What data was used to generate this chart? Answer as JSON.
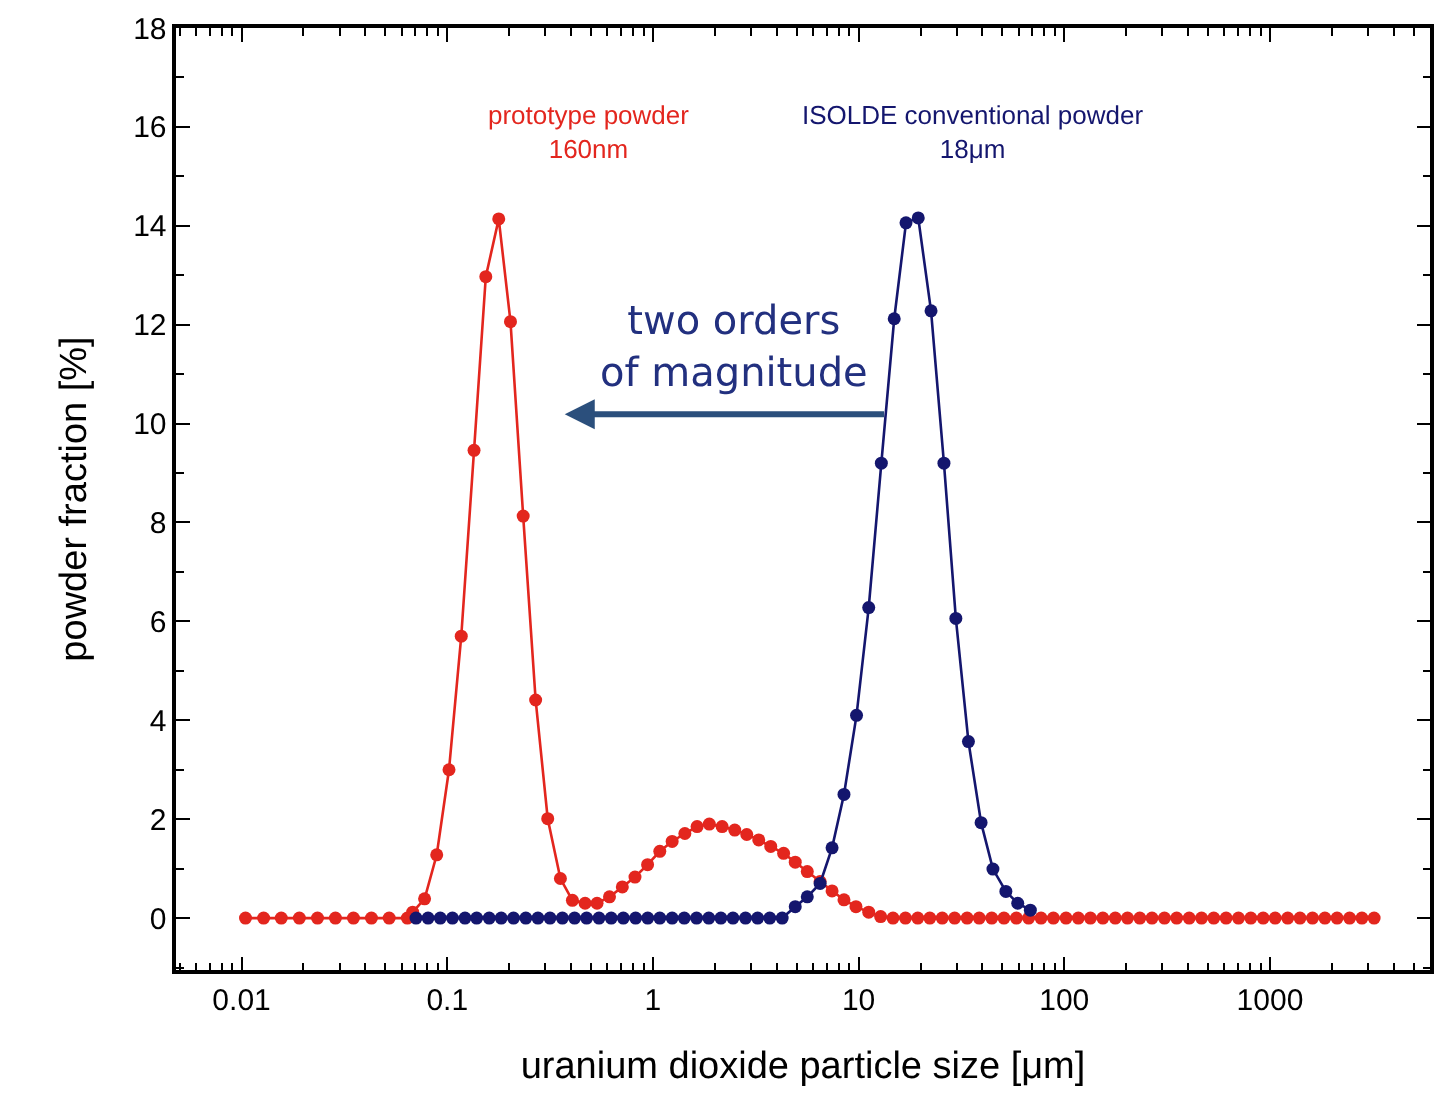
{
  "chart_data": {
    "type": "line",
    "xlabel": "uranium dioxide particle size [μm]",
    "ylabel": "powder fraction [%]",
    "log": "x",
    "xlim": [
      0.0048,
      6000
    ],
    "xticks": [
      {
        "value": 0.01,
        "label": "0.01"
      },
      {
        "value": 0.1,
        "label": "0.1"
      },
      1,
      10,
      100,
      1000
    ],
    "ylim": [
      -1.05,
      18
    ],
    "yticks": [
      0,
      2,
      4,
      6,
      8,
      10,
      12,
      14,
      16,
      18
    ],
    "grid": false,
    "marker": "circle",
    "line_style": "solid",
    "annotations": [
      "prototype powder\n160nm",
      "ISOLDE conventional powder\n18μm",
      "two orders\nof magnitude"
    ],
    "series": [
      {
        "color": "#e3261e",
        "x": [
          0.01045,
          0.0128,
          0.0156,
          0.0191,
          0.0234,
          0.0286,
          0.035,
          0.0428,
          0.0522,
          0.064,
          0.0679,
          0.0776,
          0.0889,
          0.102,
          0.117,
          0.135,
          0.154,
          0.178,
          0.203,
          0.234,
          0.269,
          0.308,
          0.355,
          0.406,
          0.468,
          0.535,
          0.615,
          0.71,
          0.818,
          0.942,
          1.08,
          1.24,
          1.43,
          1.64,
          1.88,
          2.17,
          2.5,
          2.86,
          3.27,
          3.74,
          4.32,
          4.92,
          5.63,
          6.5,
          7.43,
          8.49,
          9.71,
          11.2,
          12.8,
          14.7,
          16.9,
          19.4,
          22.2,
          25.5,
          29.3,
          33.7,
          38.6,
          44.4,
          50.9,
          58.5,
          67.1,
          77.1,
          88.5,
          102,
          117,
          134,
          154,
          177,
          203,
          233,
          267,
          307,
          352,
          405,
          465,
          533,
          612,
          703,
          807,
          927,
          1060,
          1220,
          1400,
          1610,
          1850,
          2120,
          2440,
          2800,
          3210
        ],
        "values": [
          0,
          0,
          0,
          0,
          0,
          0,
          0,
          0,
          0,
          0,
          0.12,
          0.39,
          1.28,
          3.0,
          5.7,
          9.46,
          12.97,
          14.14,
          12.06,
          8.13,
          4.41,
          2.01,
          0.8,
          0.36,
          0.3,
          0.3,
          0.43,
          0.63,
          0.83,
          1.08,
          1.35,
          1.55,
          1.71,
          1.85,
          1.9,
          1.85,
          1.78,
          1.69,
          1.58,
          1.45,
          1.31,
          1.13,
          0.94,
          0.74,
          0.55,
          0.37,
          0.23,
          0.12,
          0.03,
          0,
          0,
          0,
          0,
          0,
          0,
          0,
          0,
          0,
          0,
          0,
          0,
          0,
          0,
          0,
          0,
          0,
          0,
          0,
          0,
          0,
          0,
          0,
          0,
          0,
          0,
          0,
          0,
          0,
          0,
          0,
          0,
          0,
          0,
          0,
          0,
          0,
          0,
          0,
          0
        ]
      },
      {
        "color": "#14166e",
        "x": [
          0.0705,
          0.0807,
          0.0925,
          0.106,
          0.122,
          0.139,
          0.16,
          0.183,
          0.21,
          0.241,
          0.276,
          0.316,
          0.363,
          0.416,
          0.476,
          0.547,
          0.627,
          0.718,
          0.824,
          0.944,
          1.08,
          1.24,
          1.42,
          1.63,
          1.87,
          2.14,
          2.45,
          2.82,
          3.23,
          3.7,
          4.25,
          4.92,
          5.63,
          6.5,
          7.43,
          8.49,
          9.77,
          11.2,
          12.9,
          14.9,
          17.0,
          19.5,
          22.5,
          26.0,
          29.7,
          34.2,
          39.4,
          45.0,
          52.0,
          59.4,
          68.4
        ],
        "values": [
          0,
          0,
          0,
          0,
          0,
          0,
          0,
          0,
          0,
          0,
          0,
          0,
          0,
          0,
          0,
          0,
          0,
          0,
          0,
          0,
          0,
          0,
          0,
          0,
          0,
          0,
          0,
          0,
          0,
          0,
          0,
          0.23,
          0.43,
          0.7,
          1.42,
          2.5,
          4.1,
          6.28,
          9.2,
          12.12,
          14.06,
          14.16,
          12.28,
          9.2,
          6.06,
          3.57,
          1.93,
          0.99,
          0.54,
          0.3,
          0.16
        ]
      }
    ]
  }
}
